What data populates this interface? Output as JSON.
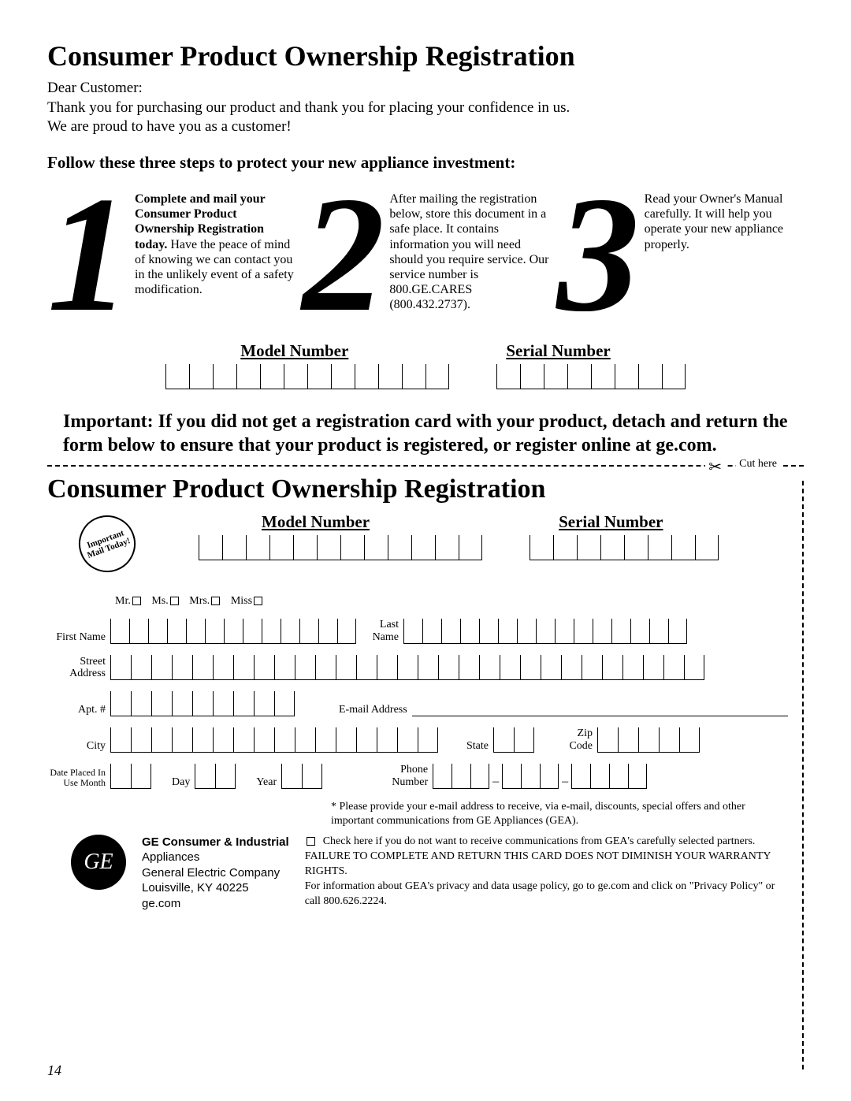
{
  "page_number": "14",
  "title": "Consumer Product Ownership Registration",
  "greeting": "Dear Customer:",
  "intro_line1": "Thank you for purchasing our product and thank you for placing your confidence in us.",
  "intro_line2": "We are proud to have you as a customer!",
  "steps_heading": "Follow these three steps to protect your new appliance investment:",
  "steps": [
    {
      "num": "1",
      "bold": "Complete and mail your Consumer Product Ownership Registration today.",
      "rest": " Have the peace of mind of knowing we can contact you in the unlikely event of a safety modification."
    },
    {
      "num": "2",
      "bold": "",
      "rest": "After mailing the registration below, store this document in a safe place. It contains information you will need should you require service. Our service number is 800.GE.CARES (800.432.2737)."
    },
    {
      "num": "3",
      "bold": "",
      "rest": "Read your Owner's Manual carefully. It will help you operate your new appliance properly."
    }
  ],
  "model_label": "Model Number",
  "serial_label": "Serial Number",
  "model_box_count": 12,
  "serial_box_count": 8,
  "important_text": "Important: If you did not get a registration card with your product, detach and return the form below to ensure that your product is registered, or register online at ge.com.",
  "cut_here": "Cut here",
  "stamp_text": "Important Mail Today!",
  "titles": {
    "mr": "Mr.",
    "ms": "Ms.",
    "mrs": "Mrs.",
    "miss": "Miss"
  },
  "labels": {
    "first_name": "First Name",
    "last_name": "Last Name",
    "street": "Street Address",
    "apt": "Apt. #",
    "email": "E-mail Address",
    "city": "City",
    "state": "State",
    "zip": "Zip Code",
    "date_placed": "Date Placed In Use Month",
    "day": "Day",
    "year": "Year",
    "phone": "Phone Number"
  },
  "boxes": {
    "first_name": 13,
    "last_name": 15,
    "street": 29,
    "apt": 9,
    "city": 16,
    "state": 2,
    "zip": 5,
    "month": 2,
    "day": 2,
    "year": 2,
    "phone1": 3,
    "phone2": 3,
    "phone3": 4
  },
  "footnote": "* Please provide your e-mail address to receive, via e-mail, discounts, special offers and other important communications from GE Appliances (GEA).",
  "optout": "Check here if you do not want to receive communications from GEA's carefully selected partners.",
  "warranty": "FAILURE TO COMPLETE AND RETURN THIS CARD DOES NOT DIMINISH YOUR WARRANTY RIGHTS.",
  "privacy": "For information about GEA's privacy and data usage policy, go to ge.com and click on \"Privacy Policy\" or call 800.626.2224.",
  "company": {
    "line1": "GE Consumer & Industrial",
    "line2": "Appliances",
    "line3": "General Electric Company",
    "line4": "Louisville, KY 40225",
    "line5": "ge.com"
  },
  "logo_text": "GE",
  "colors": {
    "text": "#000000",
    "bg": "#ffffff"
  }
}
